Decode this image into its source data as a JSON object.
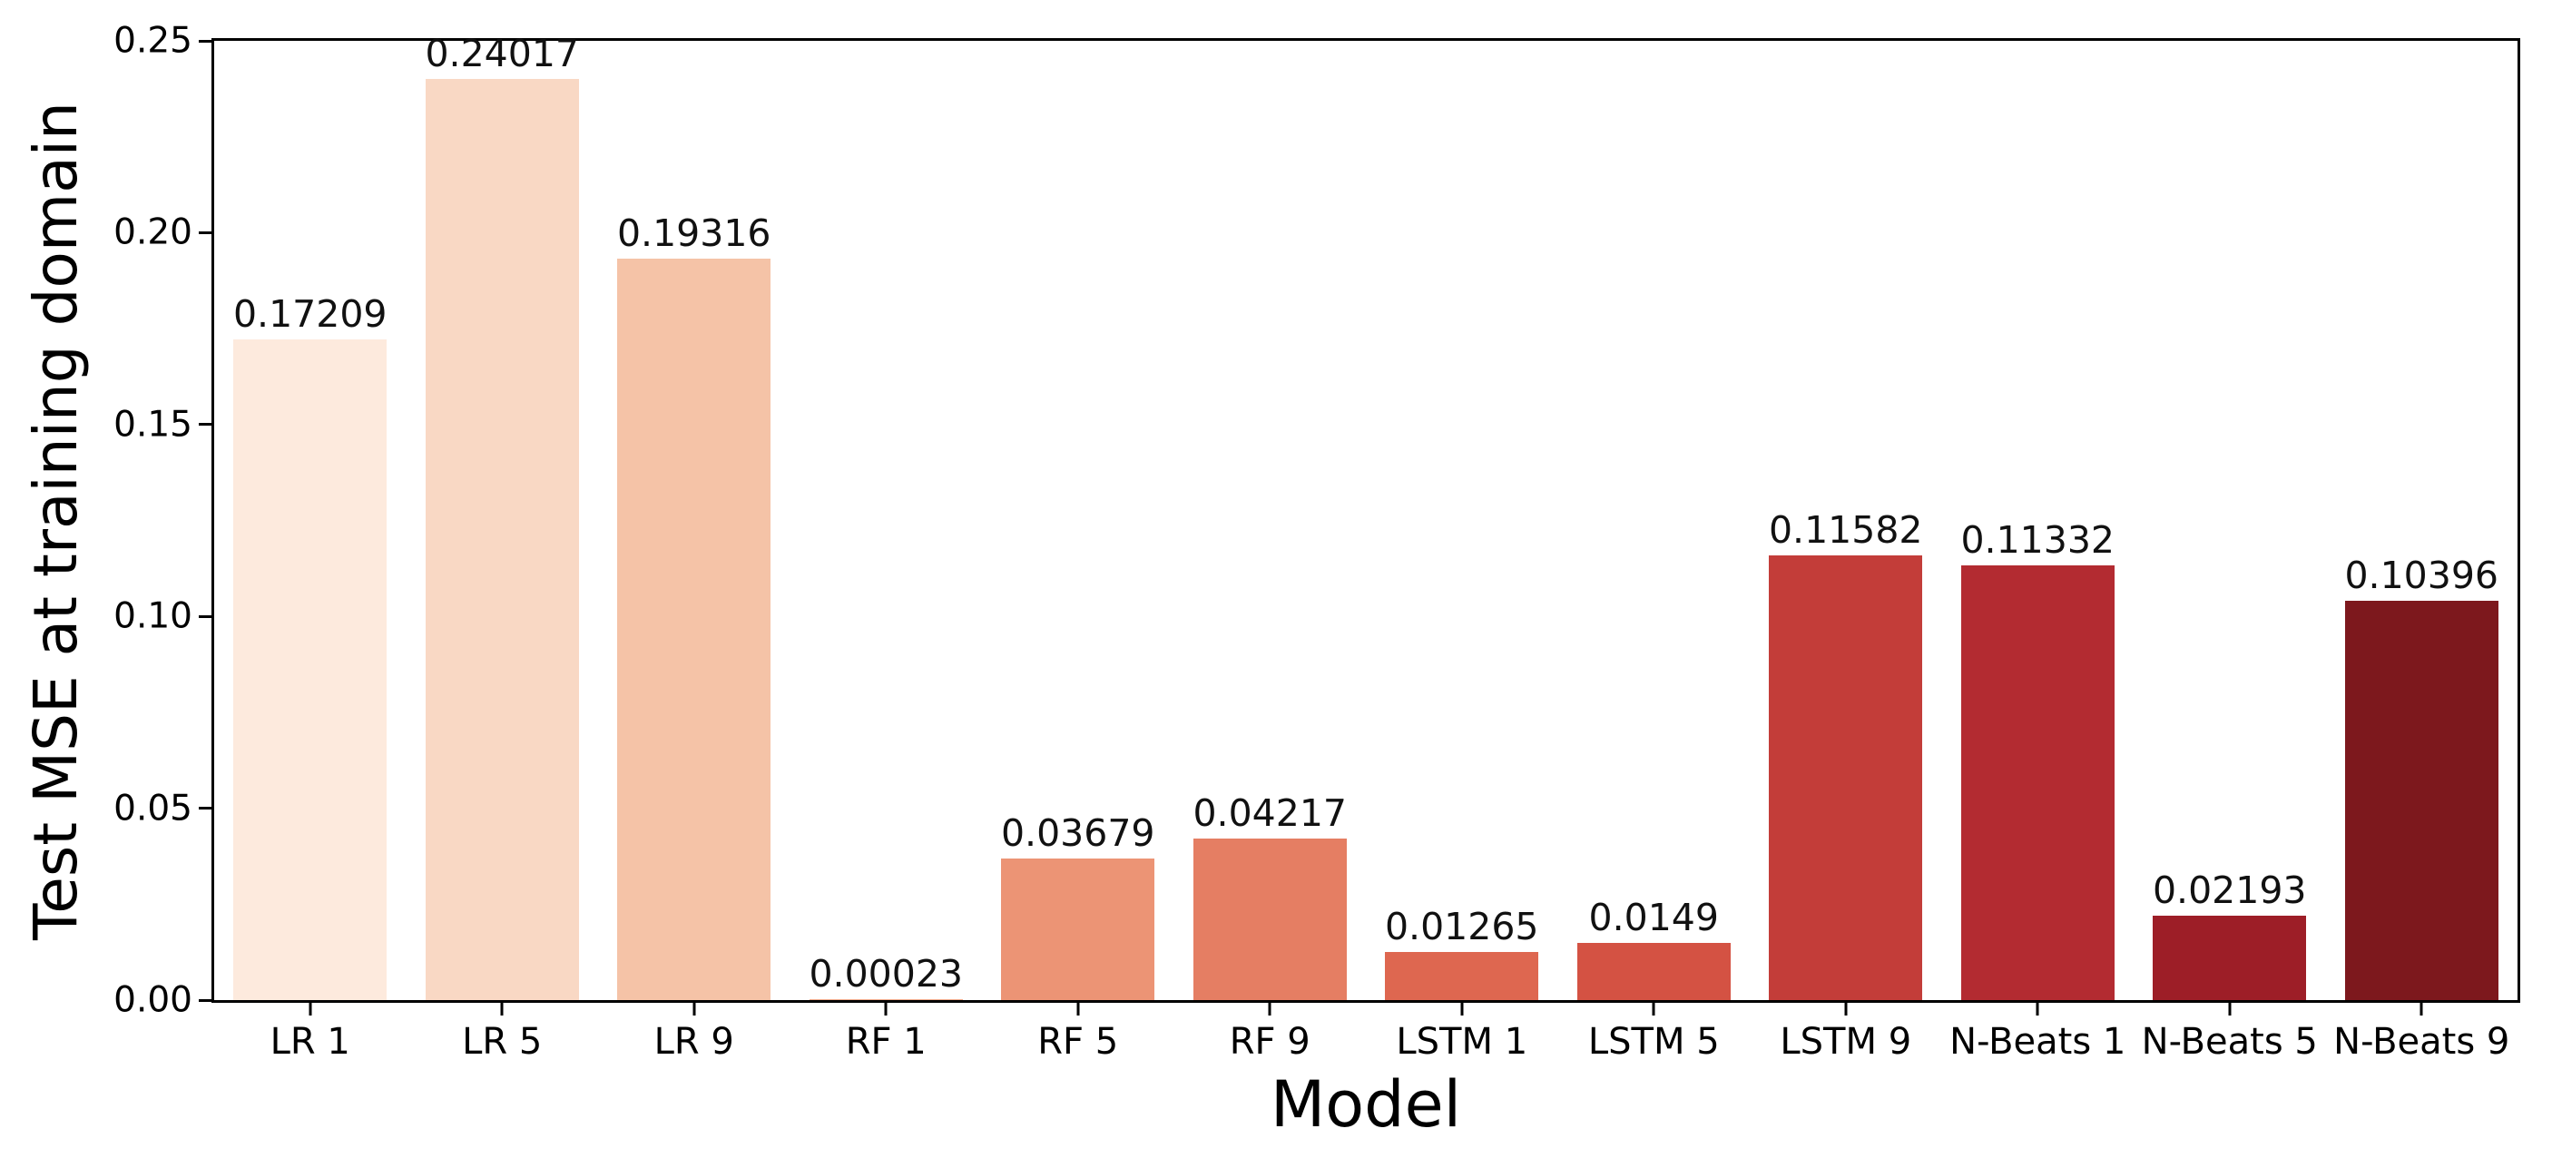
{
  "chart_data": {
    "type": "bar",
    "title": "",
    "xlabel": "Model",
    "ylabel": "Test MSE at training domain",
    "ylim": [
      0,
      0.25
    ],
    "yticks": [
      "0.00",
      "0.05",
      "0.10",
      "0.15",
      "0.20",
      "0.25"
    ],
    "grid": false,
    "legend_position": "none",
    "categories": [
      "LR 1",
      "LR 5",
      "LR 9",
      "RF 1",
      "RF 5",
      "RF 9",
      "LSTM 1",
      "LSTM 5",
      "LSTM 9",
      "N-Beats 1",
      "N-Beats 5",
      "N-Beats 9"
    ],
    "values": [
      0.17209,
      0.24017,
      0.19316,
      0.00023,
      0.03679,
      0.04217,
      0.01265,
      0.0149,
      0.11582,
      0.11332,
      0.02193,
      0.10396
    ],
    "value_labels": [
      "0.17209",
      "0.24017",
      "0.19316",
      "0.00023",
      "0.03679",
      "0.04217",
      "0.01265",
      "0.0149",
      "0.11582",
      "0.11332",
      "0.02193",
      "0.10396"
    ],
    "bar_colors": [
      "#fdeadd",
      "#f9d8c4",
      "#f5c3a7",
      "#f1ab8c",
      "#ec9475",
      "#e57e63",
      "#de6750",
      "#d45243",
      "#c33d39",
      "#b32b31",
      "#9d1e27",
      "#7d181d"
    ],
    "spine_color": "#000000",
    "label_text_color": "#111111"
  }
}
